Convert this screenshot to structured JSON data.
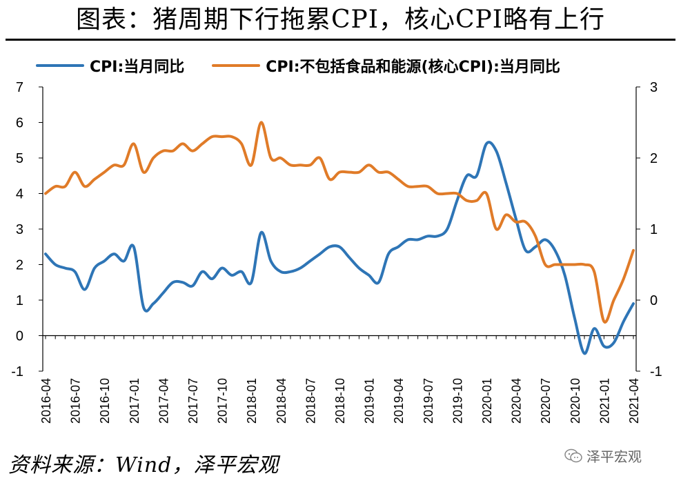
{
  "title": "图表：猪周期下行拖累CPI，核心CPI略有上行",
  "source": "资料来源：Wind，泽平宏观",
  "watermark": "泽平宏观",
  "chart_data": {
    "type": "line",
    "x_tick_labels": [
      "2016-04",
      "2016-07",
      "2016-10",
      "2017-01",
      "2017-04",
      "2017-07",
      "2017-10",
      "2018-01",
      "2018-04",
      "2018-07",
      "2018-10",
      "2019-01",
      "2019-04",
      "2019-07",
      "2019-10",
      "2020-01",
      "2020-04",
      "2020-07",
      "2020-10",
      "2021-01",
      "2021-04"
    ],
    "x": [
      "2016-04",
      "2016-05",
      "2016-06",
      "2016-07",
      "2016-08",
      "2016-09",
      "2016-10",
      "2016-11",
      "2016-12",
      "2017-01",
      "2017-02",
      "2017-03",
      "2017-04",
      "2017-05",
      "2017-06",
      "2017-07",
      "2017-08",
      "2017-09",
      "2017-10",
      "2017-11",
      "2017-12",
      "2018-01",
      "2018-02",
      "2018-03",
      "2018-04",
      "2018-05",
      "2018-06",
      "2018-07",
      "2018-08",
      "2018-09",
      "2018-10",
      "2018-11",
      "2018-12",
      "2019-01",
      "2019-02",
      "2019-03",
      "2019-04",
      "2019-05",
      "2019-06",
      "2019-07",
      "2019-08",
      "2019-09",
      "2019-10",
      "2019-11",
      "2019-12",
      "2020-01",
      "2020-02",
      "2020-03",
      "2020-04",
      "2020-05",
      "2020-06",
      "2020-07",
      "2020-08",
      "2020-09",
      "2020-10",
      "2020-11",
      "2020-12",
      "2021-01",
      "2021-02",
      "2021-03",
      "2021-04"
    ],
    "series": [
      {
        "name": "CPI:当月同比",
        "axis": "left",
        "color": "#2E75B6",
        "values": [
          2.3,
          2.0,
          1.9,
          1.8,
          1.3,
          1.9,
          2.1,
          2.3,
          2.1,
          2.5,
          0.8,
          0.9,
          1.2,
          1.5,
          1.5,
          1.4,
          1.8,
          1.6,
          1.9,
          1.7,
          1.8,
          1.5,
          2.9,
          2.1,
          1.8,
          1.8,
          1.9,
          2.1,
          2.3,
          2.5,
          2.5,
          2.2,
          1.9,
          1.7,
          1.5,
          2.3,
          2.5,
          2.7,
          2.7,
          2.8,
          2.8,
          3.0,
          3.8,
          4.5,
          4.5,
          5.4,
          5.2,
          4.3,
          3.3,
          2.4,
          2.5,
          2.7,
          2.4,
          1.7,
          0.5,
          -0.5,
          0.2,
          -0.3,
          -0.2,
          0.4,
          0.9
        ]
      },
      {
        "name": "CPI:不包括食品和能源(核心CPI):当月同比",
        "axis": "right",
        "color": "#E07B28",
        "values": [
          1.5,
          1.6,
          1.6,
          1.8,
          1.6,
          1.7,
          1.8,
          1.9,
          1.9,
          2.2,
          1.8,
          2.0,
          2.1,
          2.1,
          2.2,
          2.1,
          2.2,
          2.3,
          2.3,
          2.3,
          2.2,
          1.9,
          2.5,
          2.0,
          2.0,
          1.9,
          1.9,
          1.9,
          2.0,
          1.7,
          1.8,
          1.8,
          1.8,
          1.9,
          1.8,
          1.8,
          1.7,
          1.6,
          1.6,
          1.6,
          1.5,
          1.5,
          1.5,
          1.4,
          1.4,
          1.5,
          1.0,
          1.2,
          1.1,
          1.1,
          0.9,
          0.5,
          0.5,
          0.5,
          0.5,
          0.5,
          0.4,
          -0.3,
          0.0,
          0.3,
          0.7
        ]
      }
    ],
    "y_left": {
      "min": -1,
      "max": 7,
      "ticks": [
        -1,
        0,
        1,
        2,
        3,
        4,
        5,
        6,
        7
      ]
    },
    "y_right": {
      "min": -1,
      "max": 3,
      "ticks": [
        -1,
        0,
        1,
        2,
        3
      ]
    },
    "grid": false,
    "legend_position": "top"
  }
}
